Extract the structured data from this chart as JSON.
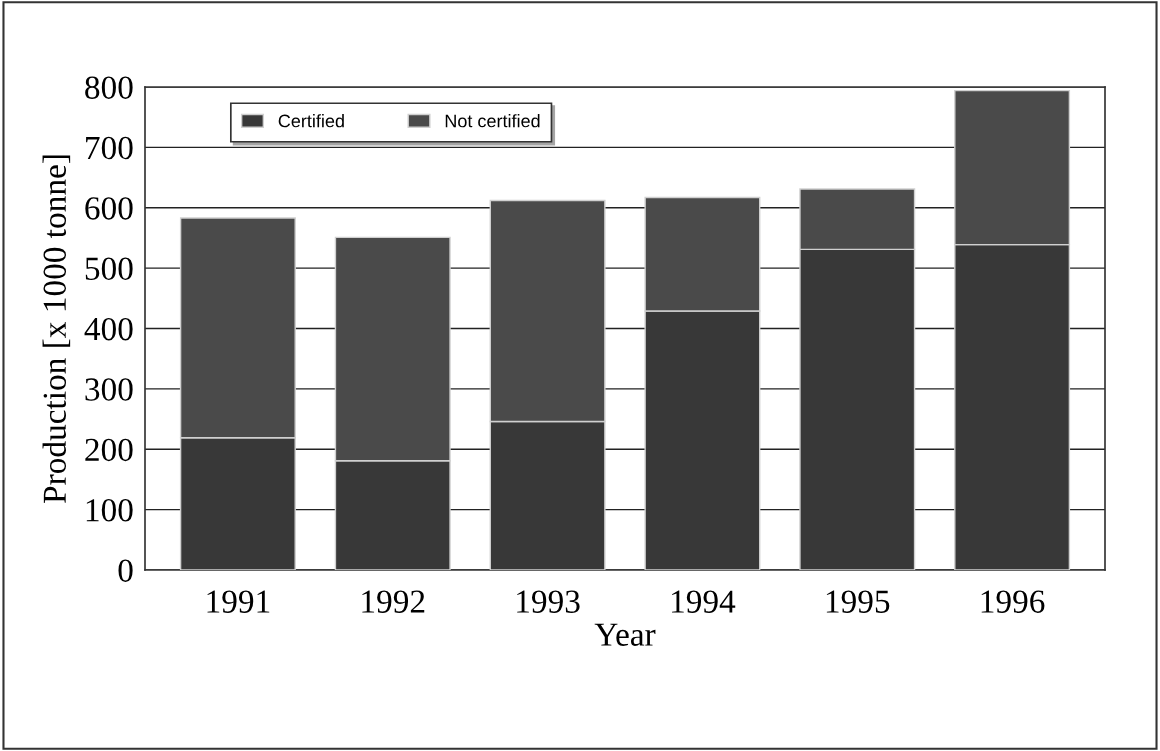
{
  "chart_data": {
    "type": "bar",
    "stacked": true,
    "xlabel": "Year",
    "ylabel": "Production [x 1000 tonne]",
    "categories": [
      "1991",
      "1992",
      "1993",
      "1994",
      "1995",
      "1996"
    ],
    "series": [
      {
        "name": "Certified",
        "color": "#383838",
        "values": [
          219,
          181,
          246,
          429,
          531,
          539
        ]
      },
      {
        "name": "Not certified",
        "color": "#4a4a4a",
        "values": [
          364,
          370,
          366,
          188,
          100,
          255
        ]
      }
    ],
    "ylim": [
      0,
      800
    ],
    "yticks": [
      0,
      100,
      200,
      300,
      400,
      500,
      600,
      700,
      800
    ],
    "grid": "y",
    "legend": "top left"
  }
}
